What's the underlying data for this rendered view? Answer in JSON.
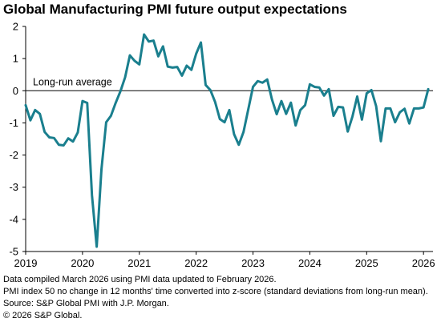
{
  "title": "Global Manufacturing PMI future output expectations",
  "footnotes": [
    "Data compiled March 2026 using PMI data updated to February 2026.",
    "PMI index 50 no change in 12 months' time converted into z-score (standard deviations from long-run mean).",
    "Source: S&P Global PMI with J.P. Morgan.",
    "© 2026 S&P Global."
  ],
  "colors": {
    "line": "#1a7f8e",
    "axis": "#000000",
    "reference": "#000000"
  },
  "chart_data": {
    "type": "line",
    "title": "Global Manufacturing PMI future output expectations",
    "xlabel": "",
    "ylabel": "",
    "ylim": [
      -5,
      2
    ],
    "yticks": [
      2,
      1,
      0,
      -1,
      -2,
      -3,
      -4,
      -5
    ],
    "xlim": [
      "2019-01",
      "2026-03"
    ],
    "xticks": [
      "2019",
      "2020",
      "2021",
      "2022",
      "2023",
      "2024",
      "2025",
      "2026"
    ],
    "grid": false,
    "reference_line": {
      "y": 0,
      "label": "Long-run average"
    },
    "series": [
      {
        "x": [
          "2019-01",
          "2019-02",
          "2019-03",
          "2019-04",
          "2019-05",
          "2019-06",
          "2019-07",
          "2019-08",
          "2019-09",
          "2019-10",
          "2019-11",
          "2019-12",
          "2020-01",
          "2020-02",
          "2020-03",
          "2020-04",
          "2020-05",
          "2020-06",
          "2020-07",
          "2020-08",
          "2020-09",
          "2020-10",
          "2020-11",
          "2020-12",
          "2021-01",
          "2021-02",
          "2021-03",
          "2021-04",
          "2021-05",
          "2021-06",
          "2021-07",
          "2021-08",
          "2021-09",
          "2021-10",
          "2021-11",
          "2021-12",
          "2022-01",
          "2022-02",
          "2022-03",
          "2022-04",
          "2022-05",
          "2022-06",
          "2022-07",
          "2022-08",
          "2022-09",
          "2022-10",
          "2022-11",
          "2022-12",
          "2023-01",
          "2023-02",
          "2023-03",
          "2023-04",
          "2023-05",
          "2023-06",
          "2023-07",
          "2023-08",
          "2023-09",
          "2023-10",
          "2023-11",
          "2023-12",
          "2024-01",
          "2024-02",
          "2024-03",
          "2024-04",
          "2024-05",
          "2024-06",
          "2024-07",
          "2024-08",
          "2024-09",
          "2024-10",
          "2024-11",
          "2024-12",
          "2025-01",
          "2025-02",
          "2025-03",
          "2025-04",
          "2025-05",
          "2025-06",
          "2025-07",
          "2025-08",
          "2025-09",
          "2025-10",
          "2025-11",
          "2025-12",
          "2026-01",
          "2026-02"
        ],
        "values": [
          -0.45,
          -0.92,
          -0.6,
          -0.72,
          -1.28,
          -1.45,
          -1.47,
          -1.68,
          -1.7,
          -1.48,
          -1.58,
          -1.3,
          -0.32,
          -0.38,
          -3.25,
          -4.85,
          -2.45,
          -0.98,
          -0.78,
          -0.38,
          -0.02,
          0.42,
          1.1,
          0.93,
          0.82,
          1.75,
          1.53,
          1.56,
          1.07,
          1.38,
          0.75,
          0.72,
          0.74,
          0.47,
          0.78,
          0.65,
          1.15,
          1.5,
          0.18,
          0.02,
          -0.35,
          -0.88,
          -0.98,
          -0.6,
          -1.35,
          -1.68,
          -1.28,
          -0.58,
          0.12,
          0.3,
          0.25,
          0.35,
          -0.27,
          -0.73,
          -0.32,
          -0.72,
          -0.37,
          -1.08,
          -0.6,
          -0.45,
          0.2,
          0.12,
          0.1,
          -0.15,
          0.05,
          -0.78,
          -0.5,
          -0.52,
          -1.27,
          -0.8,
          -0.18,
          -0.9,
          -0.08,
          0.02,
          -0.48,
          -1.57,
          -0.55,
          -0.55,
          -0.98,
          -0.67,
          -0.56,
          -1.02,
          -0.55,
          -0.55,
          -0.52,
          0.05
        ]
      }
    ]
  }
}
